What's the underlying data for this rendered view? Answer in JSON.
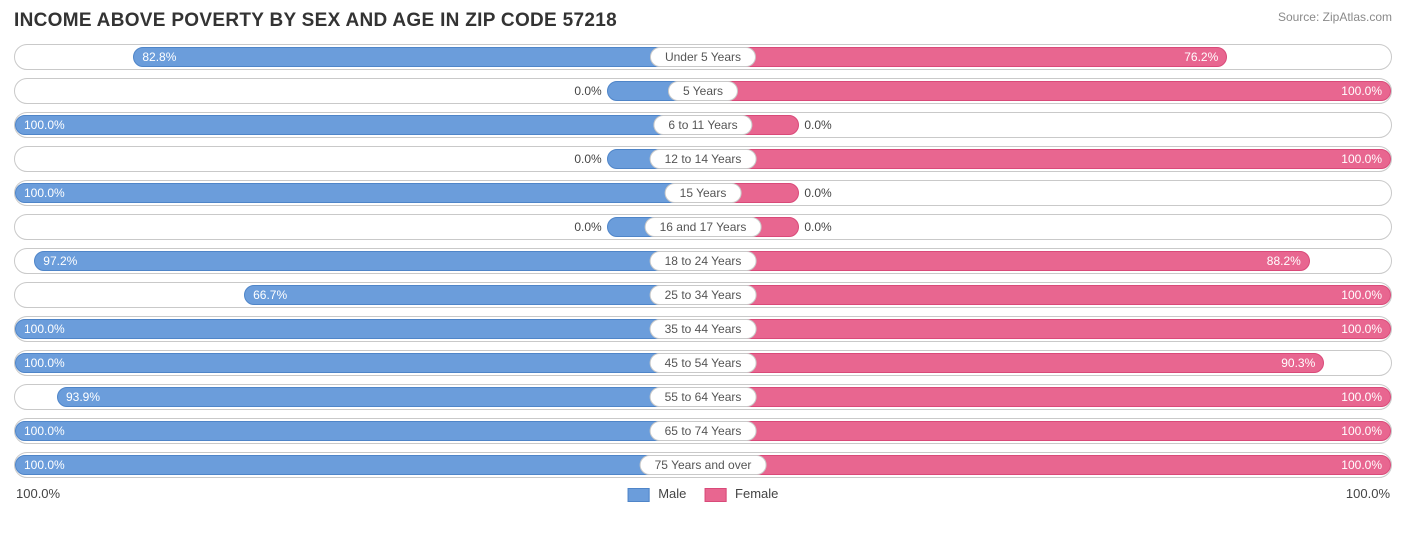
{
  "title": "INCOME ABOVE POVERTY BY SEX AND AGE IN ZIP CODE 57218",
  "source": "Source: ZipAtlas.com",
  "chart": {
    "type": "diverging-bar",
    "scale_max": 100.0,
    "min_bar_pct": 14,
    "outside_threshold_pct": 18,
    "male": {
      "fill": "#6b9ddb",
      "border": "#4f85c8"
    },
    "female": {
      "fill": "#e86690",
      "border": "#d94a79"
    },
    "track_border": "#c9c9c9",
    "background": "#ffffff",
    "label_fontsize": 12,
    "rows": [
      {
        "age": "Under 5 Years",
        "male": 82.8,
        "female": 76.2
      },
      {
        "age": "5 Years",
        "male": 0.0,
        "female": 100.0
      },
      {
        "age": "6 to 11 Years",
        "male": 100.0,
        "female": 0.0
      },
      {
        "age": "12 to 14 Years",
        "male": 0.0,
        "female": 100.0
      },
      {
        "age": "15 Years",
        "male": 100.0,
        "female": 0.0
      },
      {
        "age": "16 and 17 Years",
        "male": 0.0,
        "female": 0.0
      },
      {
        "age": "18 to 24 Years",
        "male": 97.2,
        "female": 88.2
      },
      {
        "age": "25 to 34 Years",
        "male": 66.7,
        "female": 100.0
      },
      {
        "age": "35 to 44 Years",
        "male": 100.0,
        "female": 100.0
      },
      {
        "age": "45 to 54 Years",
        "male": 100.0,
        "female": 90.3
      },
      {
        "age": "55 to 64 Years",
        "male": 93.9,
        "female": 100.0
      },
      {
        "age": "65 to 74 Years",
        "male": 100.0,
        "female": 100.0
      },
      {
        "age": "75 Years and over",
        "male": 100.0,
        "female": 100.0
      }
    ],
    "axis": {
      "left": "100.0%",
      "right": "100.0%"
    },
    "legend": {
      "male": "Male",
      "female": "Female"
    }
  }
}
